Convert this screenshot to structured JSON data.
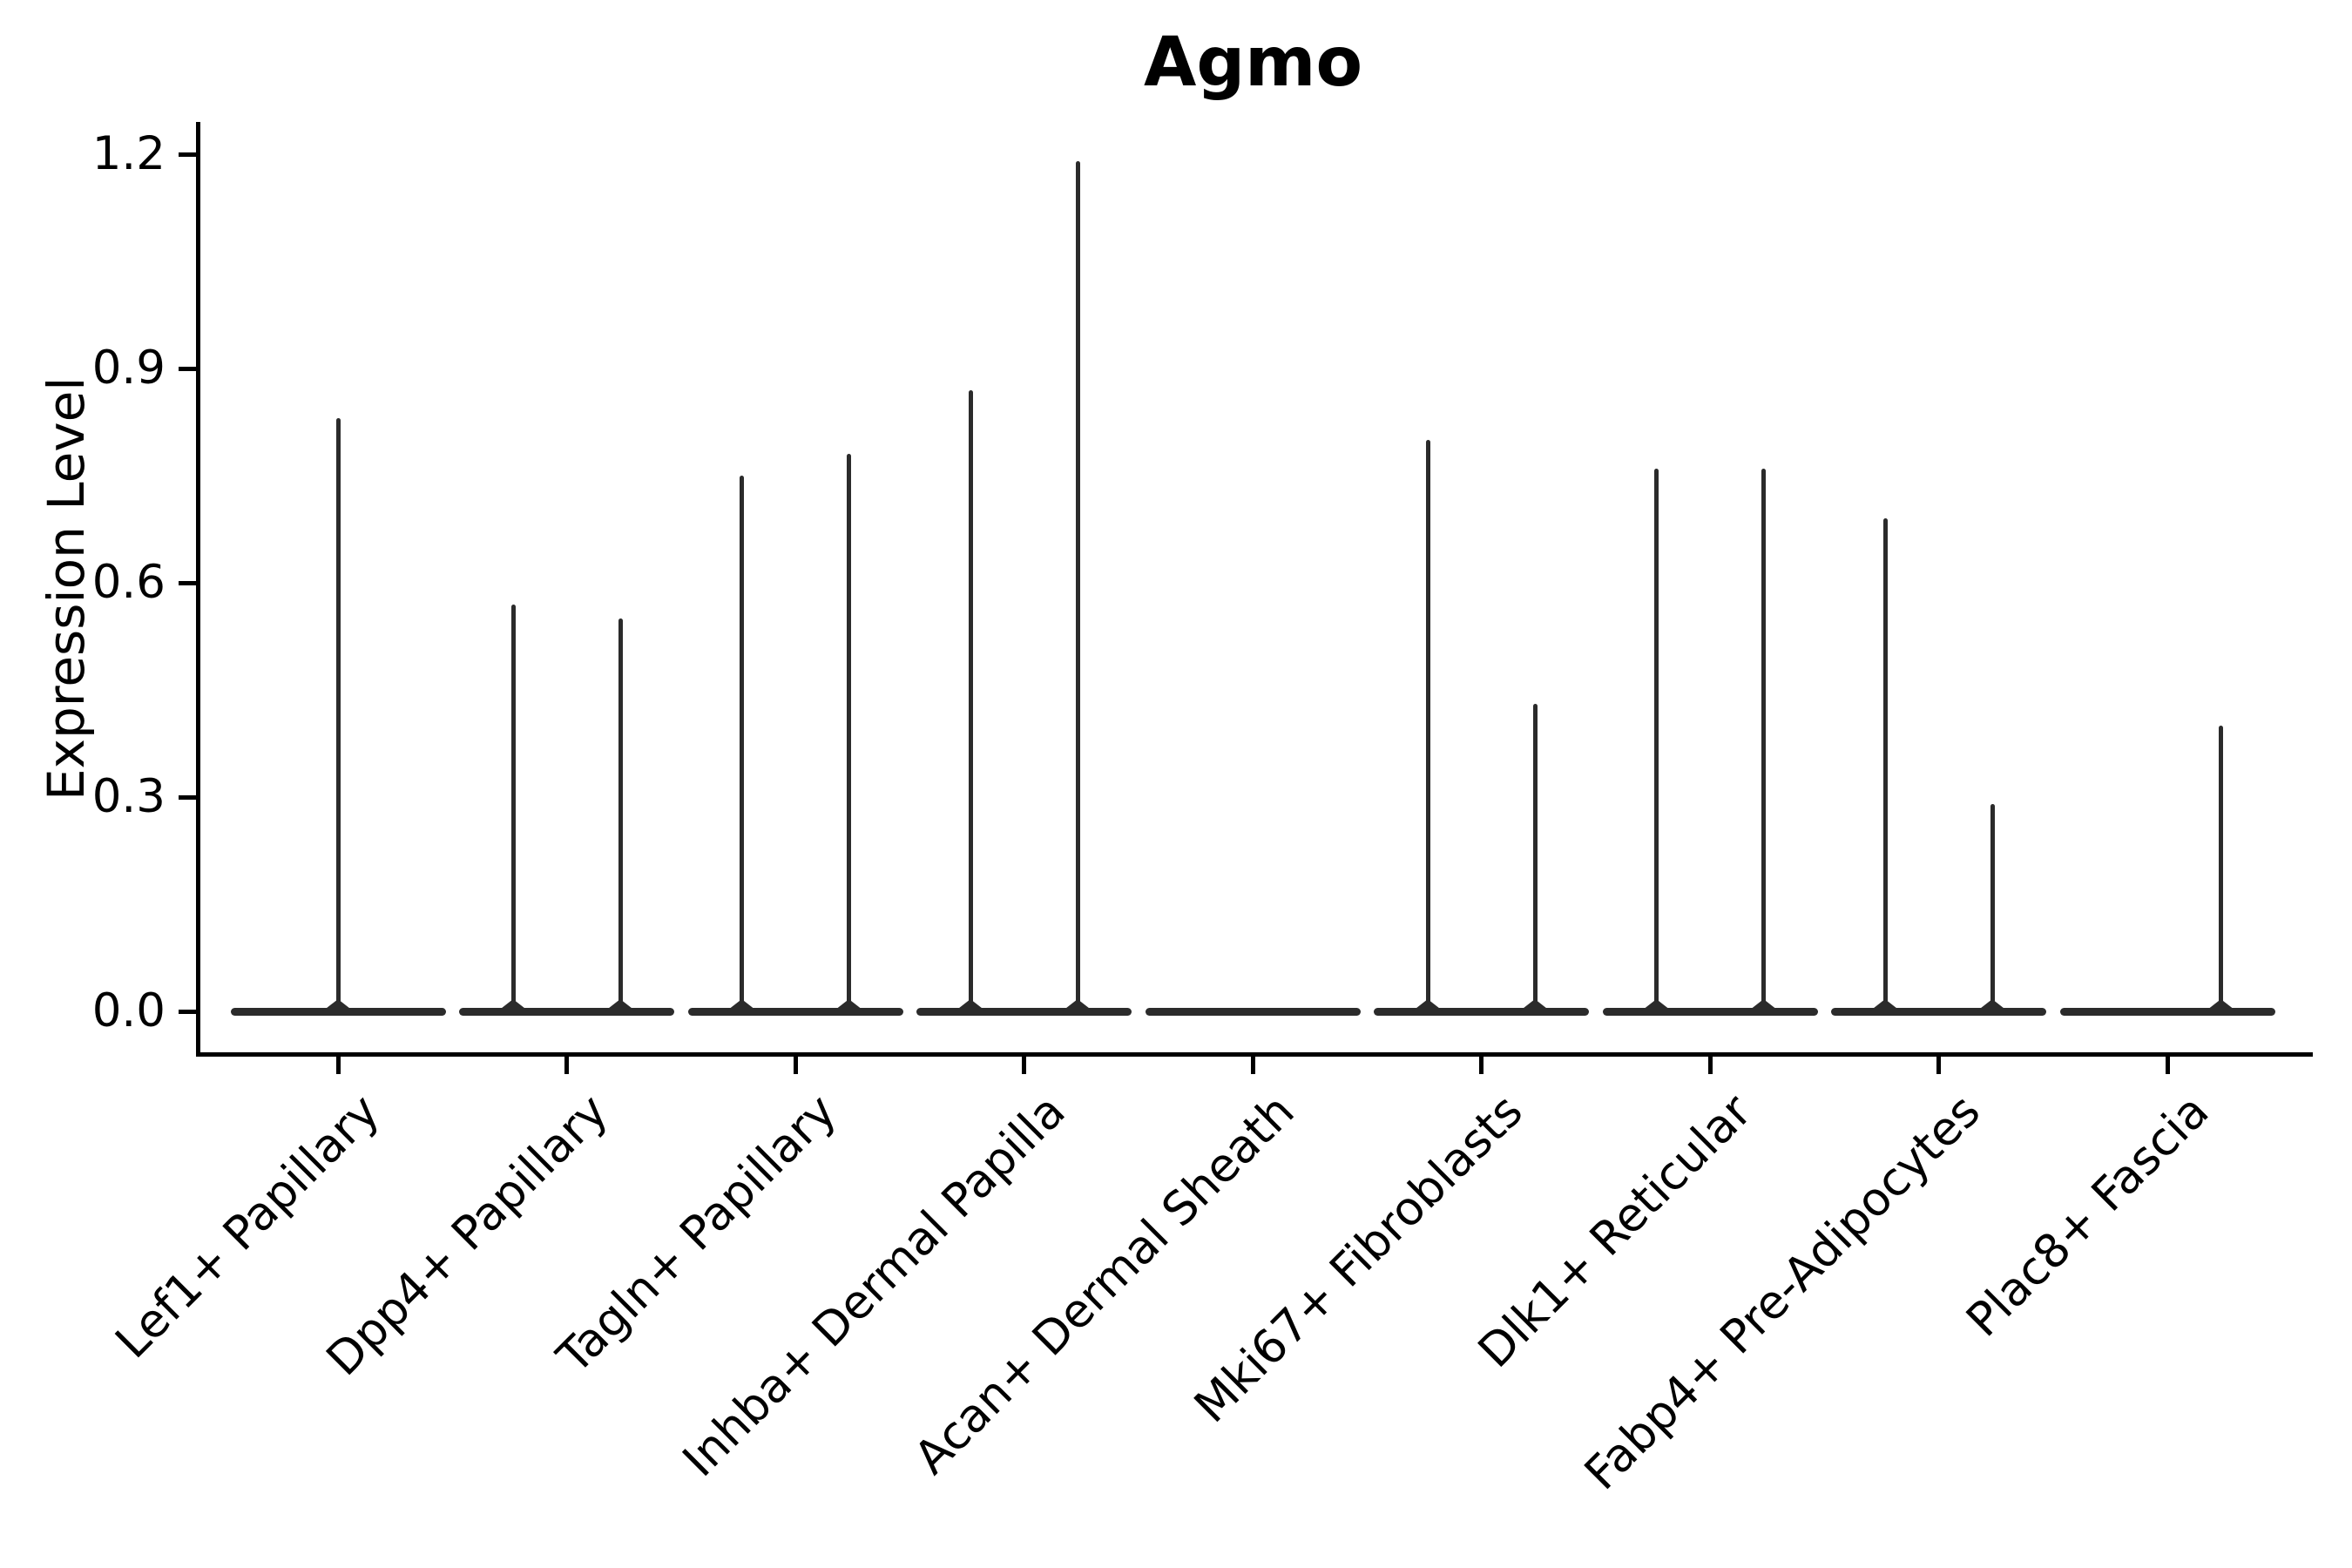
{
  "title": "Agmo",
  "colors": {
    "violin_line": "#2b2b2b",
    "axis": "#000000",
    "text": "#000000",
    "background": "#ffffff"
  },
  "chart_data": {
    "type": "violin",
    "title": "Agmo",
    "xlabel": "",
    "ylabel": "Expression Level",
    "ylim": [
      0,
      1.25
    ],
    "yticks": [
      0.0,
      0.3,
      0.6,
      0.9,
      1.2
    ],
    "ytick_labels": [
      "0.0",
      "0.3",
      "0.6",
      "0.9",
      "1.2"
    ],
    "grid": false,
    "legend_position": "none",
    "style_note": "scRNA-seq violin plot; narrow spike violins with flat bases at 0; split into left/right halves per cell-type category",
    "categories": [
      "Lef1+ Papillary",
      "Dpp4+ Papillary",
      "Tagln+ Papillary",
      "Inhba+ Dermal Papilla",
      "Acan+ Dermal Sheath",
      "Mki67+ Fibroblasts",
      "Dlk1+ Reticular",
      "Fabp4+ Pre-Adipocytes",
      "Plac8+ Fascia"
    ],
    "violins": [
      {
        "category": "Lef1+ Papillary",
        "baseline_value": 0.0,
        "spikes": [
          {
            "position": "center",
            "max": 0.83
          }
        ]
      },
      {
        "category": "Dpp4+ Papillary",
        "baseline_value": 0.0,
        "spikes": [
          {
            "position": "left",
            "max": 0.57
          },
          {
            "position": "right",
            "max": 0.55
          }
        ]
      },
      {
        "category": "Tagln+ Papillary",
        "baseline_value": 0.0,
        "spikes": [
          {
            "position": "left",
            "max": 0.75
          },
          {
            "position": "right",
            "max": 0.78
          }
        ]
      },
      {
        "category": "Inhba+ Dermal Papilla",
        "baseline_value": 0.0,
        "spikes": [
          {
            "position": "left",
            "max": 0.87
          },
          {
            "position": "right",
            "max": 1.19
          }
        ]
      },
      {
        "category": "Acan+ Dermal Sheath",
        "baseline_value": 0.0,
        "spikes": []
      },
      {
        "category": "Mki67+ Fibroblasts",
        "baseline_value": 0.0,
        "spikes": [
          {
            "position": "left",
            "max": 0.8
          },
          {
            "position": "right",
            "max": 0.43
          }
        ]
      },
      {
        "category": "Dlk1+ Reticular",
        "baseline_value": 0.0,
        "spikes": [
          {
            "position": "left",
            "max": 0.76
          },
          {
            "position": "right",
            "max": 0.76
          }
        ]
      },
      {
        "category": "Fabp4+ Pre-Adipocytes",
        "baseline_value": 0.0,
        "spikes": [
          {
            "position": "left",
            "max": 0.69
          },
          {
            "position": "right",
            "max": 0.29
          }
        ]
      },
      {
        "category": "Plac8+ Fascia",
        "baseline_value": 0.0,
        "spikes": [
          {
            "position": "right",
            "max": 0.4
          }
        ]
      }
    ]
  }
}
